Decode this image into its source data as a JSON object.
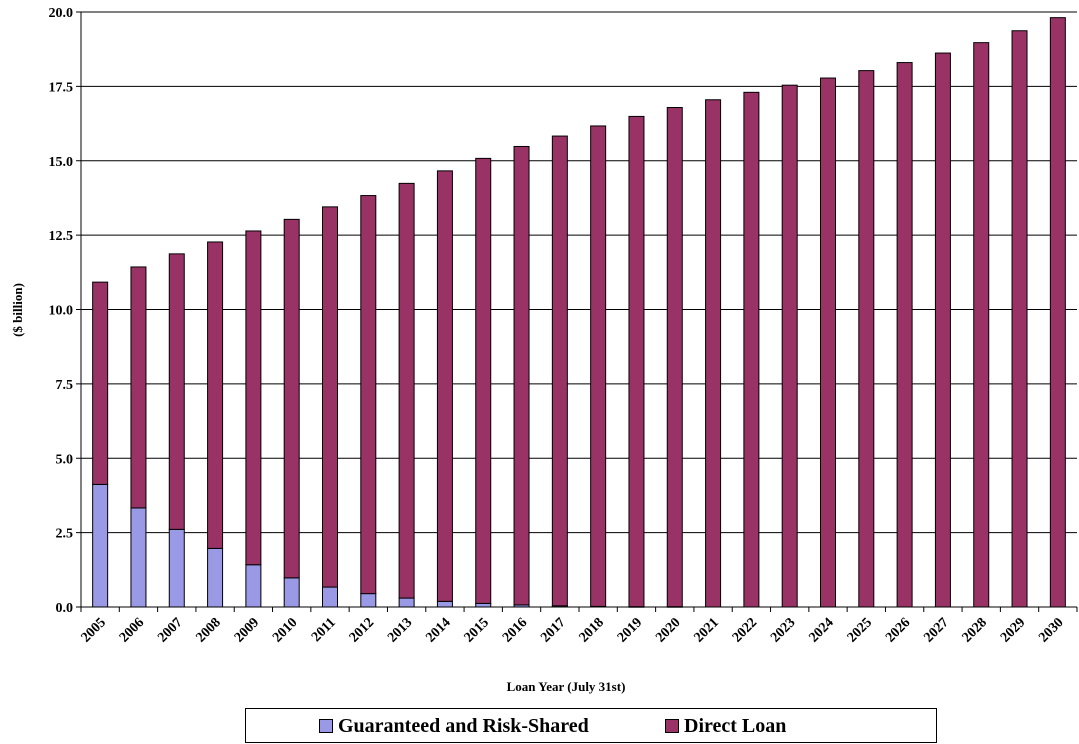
{
  "chart_data": {
    "type": "bar",
    "stacked": true,
    "categories": [
      "2005",
      "2006",
      "2007",
      "2008",
      "2009",
      "2010",
      "2011",
      "2012",
      "2013",
      "2014",
      "2015",
      "2016",
      "2017",
      "2018",
      "2019",
      "2020",
      "2021",
      "2022",
      "2023",
      "2024",
      "2025",
      "2026",
      "2027",
      "2028",
      "2029",
      "2030"
    ],
    "series": [
      {
        "name": "Guaranteed and Risk-Shared",
        "color": "#9999e6",
        "values": [
          4.12,
          3.33,
          2.61,
          1.97,
          1.42,
          0.98,
          0.67,
          0.45,
          0.3,
          0.19,
          0.12,
          0.07,
          0.04,
          0.02,
          0.01,
          0.01,
          0,
          0,
          0,
          0,
          0,
          0,
          0,
          0,
          0,
          0
        ]
      },
      {
        "name": "Direct Loan",
        "color": "#993366",
        "values": [
          6.8,
          8.1,
          9.26,
          10.3,
          11.22,
          12.05,
          12.78,
          13.38,
          13.94,
          14.47,
          14.96,
          15.41,
          15.79,
          16.15,
          16.48,
          16.78,
          17.05,
          17.3,
          17.54,
          17.78,
          18.03,
          18.3,
          18.62,
          18.97,
          19.37,
          19.81
        ]
      }
    ],
    "ylabel": "($ billion)",
    "xlabel": "Loan Year (July 31st)",
    "ylim": [
      0,
      20
    ],
    "yticks": [
      "0.0",
      "2.5",
      "5.0",
      "7.5",
      "10.0",
      "12.5",
      "15.0",
      "17.5",
      "20.0"
    ],
    "grid": true,
    "legend_position": "bottom"
  }
}
